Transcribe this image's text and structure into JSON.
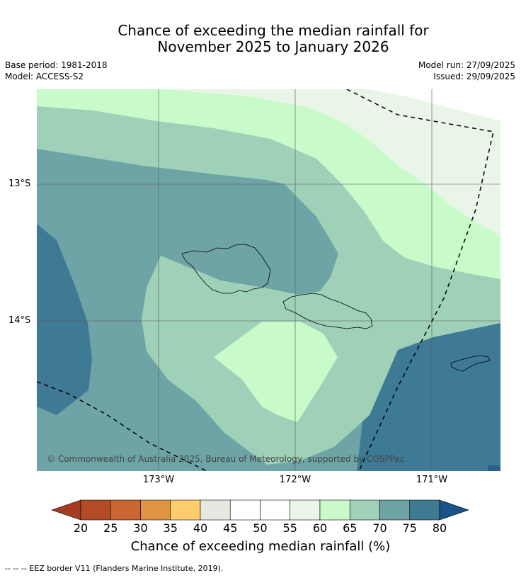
{
  "title_line1": "Chance of exceeding the median rainfall for",
  "title_line2": "November 2025 to January 2026",
  "meta": {
    "base_period": "Base period: 1981-2018",
    "model": "Model: ACCESS-S2",
    "model_run": "Model run: 27/09/2025",
    "issued": "Issued: 29/09/2025"
  },
  "map": {
    "lat_labels": [
      "13°S",
      "14°S"
    ],
    "lon_labels": [
      "173°W",
      "172°W",
      "171°W"
    ],
    "copyright": "© Commonwealth of Australia 2025, Bureau of Meteorology, supported by COSPPac",
    "contour_colors": {
      "c55_60": "#e8f5e7",
      "c60_65": "#c9fbca",
      "c65_70": "#9ed1b8",
      "c70_75": "#6ea4a6",
      "c75_80": "#3f7a94",
      "c80_plus": "#2a5f8a"
    }
  },
  "colorbar": {
    "title": "Chance of exceeding median rainfall (%)",
    "ticks": [
      "20",
      "25",
      "30",
      "35",
      "40",
      "45",
      "50",
      "55",
      "60",
      "65",
      "70",
      "75",
      "80"
    ],
    "colors": [
      "#a33c22",
      "#b34b27",
      "#cc6534",
      "#e09545",
      "#fdcd6c",
      "#e8e7e2",
      "#ffffff",
      "#ffffff",
      "#e8f5e7",
      "#c9fbca",
      "#9ed1b8",
      "#6ea4a6",
      "#3f7a94",
      "#1b5288"
    ]
  },
  "footer": "--  --  -- EEZ border V11 (Flanders Marine Institute, 2019)."
}
